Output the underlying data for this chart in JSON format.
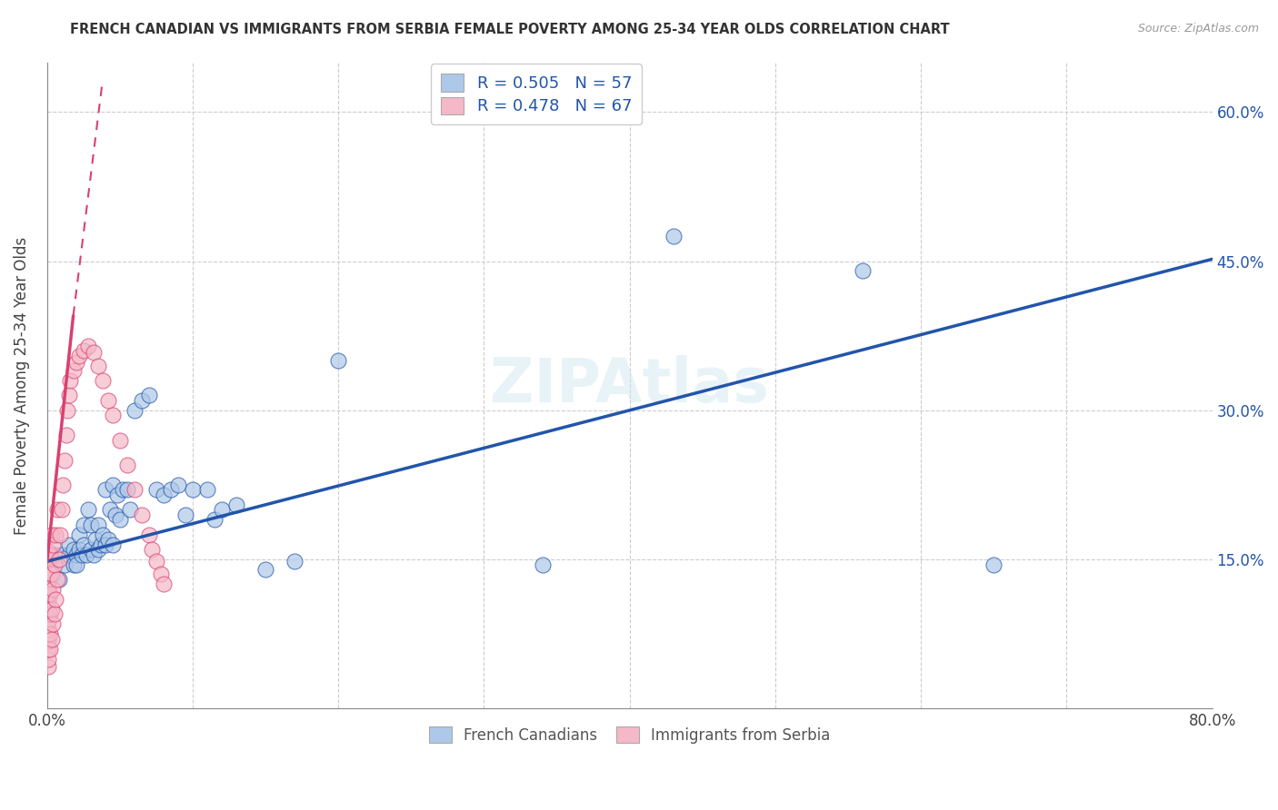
{
  "title": "FRENCH CANADIAN VS IMMIGRANTS FROM SERBIA FEMALE POVERTY AMONG 25-34 YEAR OLDS CORRELATION CHART",
  "source": "Source: ZipAtlas.com",
  "ylabel": "Female Poverty Among 25-34 Year Olds",
  "xlim": [
    0,
    0.8
  ],
  "ylim": [
    0,
    0.65
  ],
  "xtick_positions": [
    0.0,
    0.1,
    0.2,
    0.3,
    0.4,
    0.5,
    0.6,
    0.7,
    0.8
  ],
  "xticklabels": [
    "0.0%",
    "",
    "",
    "",
    "",
    "",
    "",
    "",
    "80.0%"
  ],
  "ytick_positions": [
    0.15,
    0.3,
    0.45,
    0.6
  ],
  "ytick_labels": [
    "15.0%",
    "30.0%",
    "45.0%",
    "60.0%"
  ],
  "legend_labels": [
    "French Canadians",
    "Immigrants from Serbia"
  ],
  "blue_R_label": "R = 0.505   N = 57",
  "pink_R_label": "R = 0.478   N = 67",
  "blue_color": "#adc8e8",
  "pink_color": "#f5b8c8",
  "blue_line_color": "#2255aa",
  "pink_line_color": "#d94070",
  "watermark": "ZIPAtlas",
  "blue_line_x0": 0.0,
  "blue_line_y0": 0.148,
  "blue_line_x1": 0.8,
  "blue_line_y1": 0.452,
  "pink_line_solid_x0": 0.0,
  "pink_line_solid_y0": 0.148,
  "pink_line_solid_x1": 0.018,
  "pink_line_solid_y1": 0.395,
  "pink_line_dashed_x0": 0.018,
  "pink_line_dashed_y0": 0.395,
  "pink_line_dashed_x1": 0.038,
  "pink_line_dashed_y1": 0.63,
  "blue_scatter_x": [
    0.005,
    0.008,
    0.01,
    0.012,
    0.015,
    0.015,
    0.018,
    0.018,
    0.02,
    0.02,
    0.022,
    0.022,
    0.024,
    0.025,
    0.025,
    0.027,
    0.028,
    0.03,
    0.03,
    0.032,
    0.033,
    0.035,
    0.035,
    0.037,
    0.038,
    0.04,
    0.04,
    0.042,
    0.043,
    0.045,
    0.045,
    0.047,
    0.048,
    0.05,
    0.052,
    0.055,
    0.057,
    0.06,
    0.065,
    0.07,
    0.075,
    0.08,
    0.085,
    0.09,
    0.095,
    0.1,
    0.11,
    0.115,
    0.12,
    0.13,
    0.15,
    0.17,
    0.2,
    0.34,
    0.43,
    0.56,
    0.65
  ],
  "blue_scatter_y": [
    0.155,
    0.13,
    0.155,
    0.145,
    0.155,
    0.165,
    0.16,
    0.145,
    0.155,
    0.145,
    0.16,
    0.175,
    0.155,
    0.165,
    0.185,
    0.155,
    0.2,
    0.16,
    0.185,
    0.155,
    0.17,
    0.16,
    0.185,
    0.165,
    0.175,
    0.165,
    0.22,
    0.17,
    0.2,
    0.165,
    0.225,
    0.195,
    0.215,
    0.19,
    0.22,
    0.22,
    0.2,
    0.3,
    0.31,
    0.315,
    0.22,
    0.215,
    0.22,
    0.225,
    0.195,
    0.22,
    0.22,
    0.19,
    0.2,
    0.205,
    0.14,
    0.148,
    0.35,
    0.145,
    0.475,
    0.44,
    0.145
  ],
  "pink_scatter_x": [
    0.001,
    0.001,
    0.001,
    0.001,
    0.001,
    0.001,
    0.001,
    0.001,
    0.001,
    0.001,
    0.001,
    0.001,
    0.001,
    0.001,
    0.001,
    0.001,
    0.001,
    0.001,
    0.001,
    0.001,
    0.002,
    0.002,
    0.002,
    0.002,
    0.002,
    0.002,
    0.003,
    0.003,
    0.003,
    0.003,
    0.004,
    0.004,
    0.004,
    0.005,
    0.005,
    0.006,
    0.006,
    0.007,
    0.007,
    0.008,
    0.009,
    0.01,
    0.011,
    0.012,
    0.013,
    0.014,
    0.015,
    0.016,
    0.018,
    0.02,
    0.022,
    0.025,
    0.028,
    0.032,
    0.035,
    0.038,
    0.042,
    0.045,
    0.05,
    0.055,
    0.06,
    0.065,
    0.07,
    0.072,
    0.075,
    0.078,
    0.08
  ],
  "pink_scatter_y": [
    0.042,
    0.05,
    0.06,
    0.068,
    0.075,
    0.08,
    0.088,
    0.095,
    0.1,
    0.108,
    0.115,
    0.122,
    0.13,
    0.138,
    0.145,
    0.148,
    0.15,
    0.152,
    0.155,
    0.158,
    0.06,
    0.075,
    0.095,
    0.115,
    0.135,
    0.155,
    0.07,
    0.1,
    0.135,
    0.175,
    0.085,
    0.12,
    0.165,
    0.095,
    0.145,
    0.11,
    0.175,
    0.13,
    0.2,
    0.15,
    0.175,
    0.2,
    0.225,
    0.25,
    0.275,
    0.3,
    0.315,
    0.33,
    0.34,
    0.348,
    0.355,
    0.36,
    0.365,
    0.358,
    0.345,
    0.33,
    0.31,
    0.295,
    0.27,
    0.245,
    0.22,
    0.195,
    0.175,
    0.16,
    0.148,
    0.135,
    0.125
  ]
}
